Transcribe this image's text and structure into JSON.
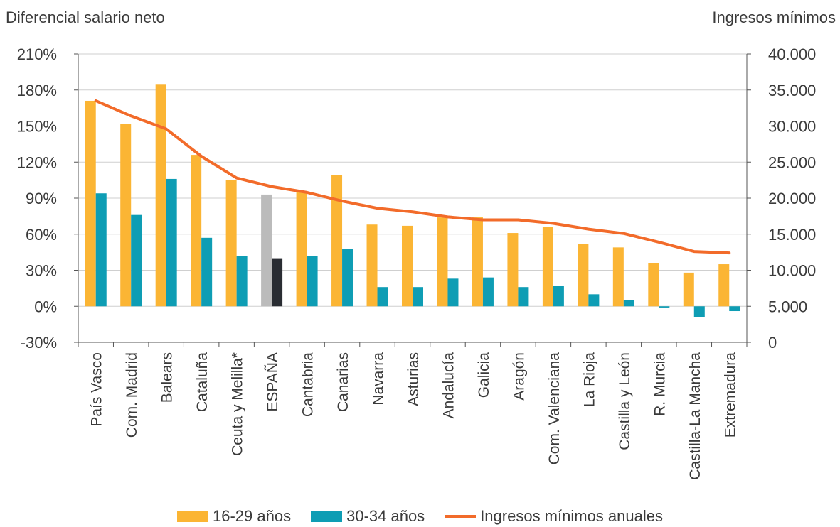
{
  "chart_data": {
    "type": "bar",
    "ylabel_left": "Diferencial salario neto",
    "ylabel_right": "Ingresos mínimos",
    "categories": [
      "País Vasco",
      "Com. Madrid",
      "Balears",
      "Cataluña",
      "Ceuta y Melilla*",
      "ESPAÑA",
      "Cantabria",
      "Canarias",
      "Navarra",
      "Asturias",
      "Andalucía",
      "Galicia",
      "Aragón",
      "Com. Valenciana",
      "La Rioja",
      "Castilla y León",
      "R. Murcia",
      "Castilla-La Mancha",
      "Extremadura"
    ],
    "y_left": {
      "min": -30,
      "max": 210,
      "ticks": [
        210,
        180,
        150,
        120,
        90,
        60,
        30,
        0,
        -30
      ],
      "tick_labels": [
        "210%",
        "180%",
        "150%",
        "120%",
        "90%",
        "60%",
        "30%",
        "0%",
        "-30%"
      ]
    },
    "y_right": {
      "min": 0,
      "max": 40000,
      "ticks": [
        40000,
        35000,
        30000,
        25000,
        20000,
        15000,
        10000,
        5000,
        0
      ],
      "tick_labels": [
        "40.000",
        "35.000",
        "30.000",
        "25.000",
        "20.000",
        "15.000",
        "10.000",
        "5.000",
        "0"
      ]
    },
    "grid": true,
    "series": [
      {
        "name": "16-29 años",
        "type": "bar",
        "axis": "left",
        "color": "#FBB534",
        "highlight_color": "#BBBBBB",
        "values": [
          171,
          152,
          185,
          126,
          105,
          93,
          96,
          109,
          68,
          67,
          74,
          74,
          61,
          66,
          52,
          49,
          36,
          28,
          35
        ]
      },
      {
        "name": "30-34 años",
        "type": "bar",
        "axis": "left",
        "color": "#0E9DB4",
        "highlight_color": "#2A2D33",
        "values": [
          94,
          76,
          106,
          57,
          42,
          40,
          42,
          48,
          16,
          16,
          23,
          24,
          16,
          17,
          10,
          5,
          -1,
          -9,
          -4
        ]
      },
      {
        "name": "Ingresos mínimos anuales",
        "type": "line",
        "axis": "right",
        "color": "#F26B2A",
        "values": [
          33500,
          31400,
          29600,
          25800,
          22800,
          21600,
          20800,
          19600,
          18600,
          18100,
          17400,
          17000,
          17000,
          16500,
          15700,
          15100,
          13900,
          12600,
          12400
        ]
      }
    ],
    "highlight_category": "ESPAÑA",
    "legend_position": "bottom"
  }
}
